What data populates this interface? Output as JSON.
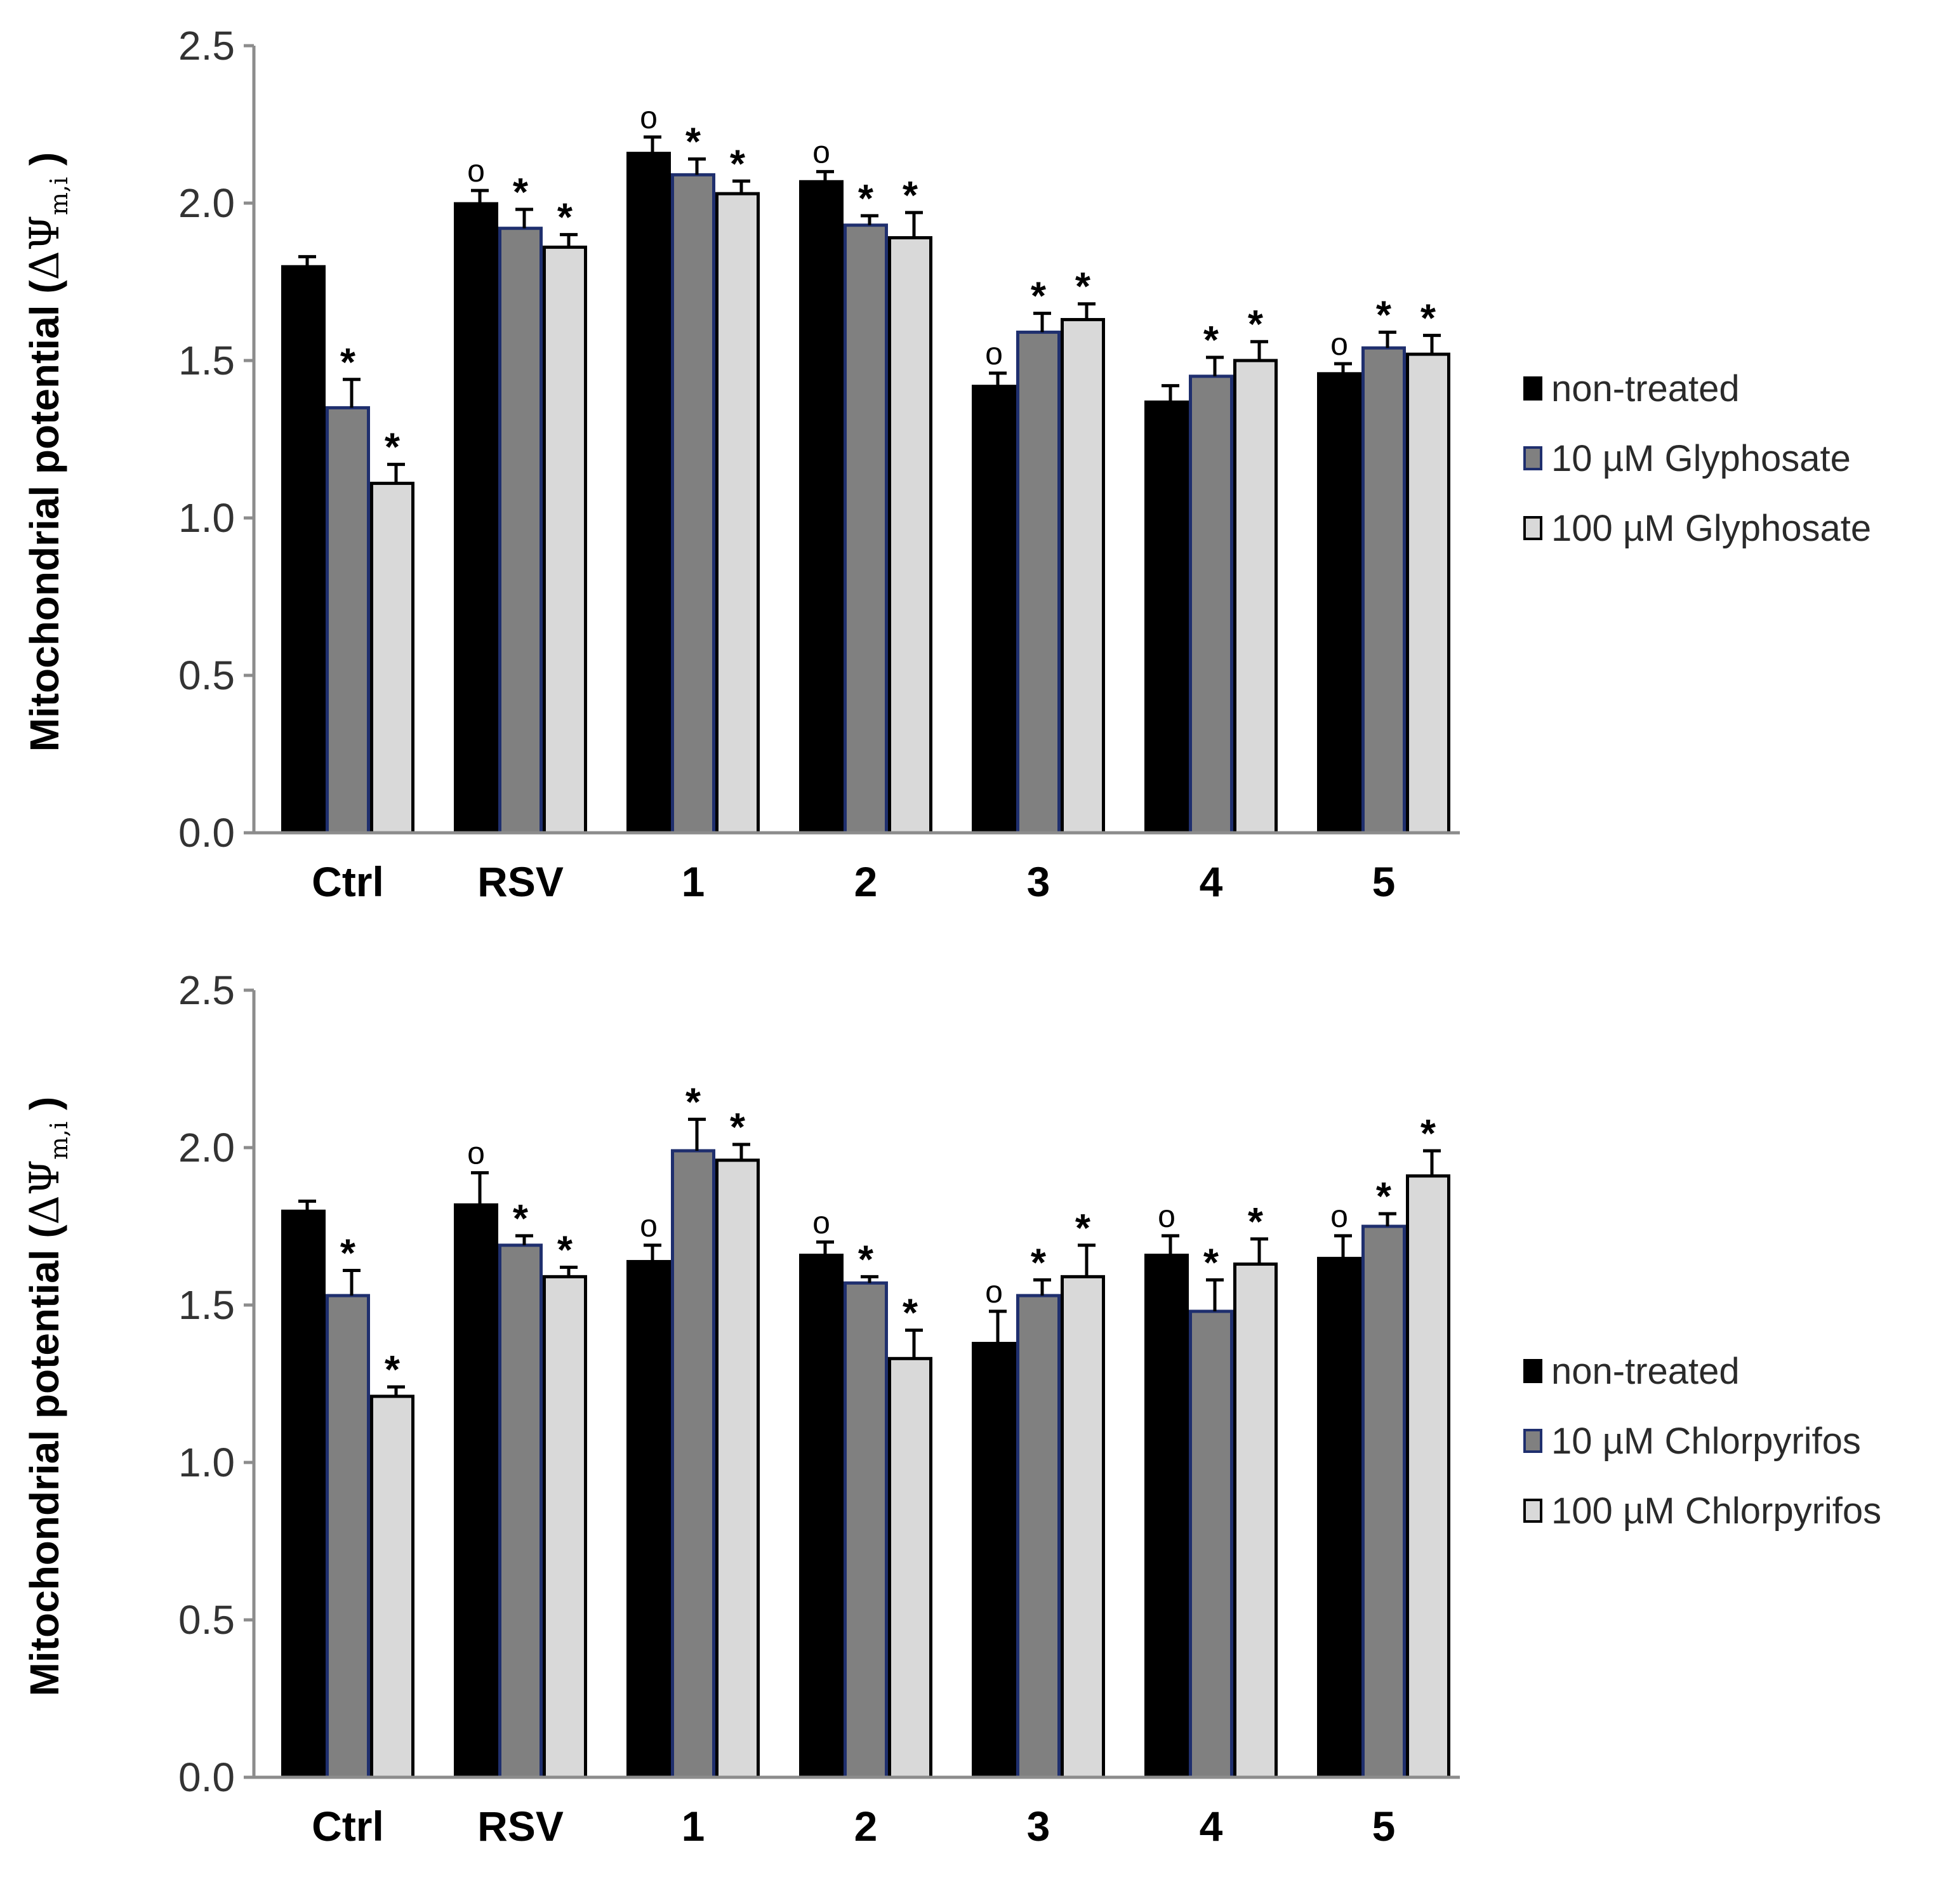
{
  "chart_data": [
    {
      "type": "bar",
      "ylabel_main": "Mitochondrial potential (",
      "ylabel_symbol": "ΔΨ",
      "ylabel_subscript": "m,i",
      "ylabel_close": " )",
      "ylim": [
        0,
        2.5
      ],
      "yticks": [
        "0.0",
        "0.5",
        "1.0",
        "1.5",
        "2.0",
        "2.5"
      ],
      "ytick_values": [
        0,
        0.5,
        1.0,
        1.5,
        2.0,
        2.5
      ],
      "categories": [
        "Ctrl",
        "RSV",
        "1",
        "2",
        "3",
        "4",
        "5"
      ],
      "series": [
        {
          "name": "non-treated",
          "fill": "#000000",
          "stroke": "#000000",
          "values": [
            1.8,
            2.0,
            2.16,
            2.07,
            1.42,
            1.37,
            1.46
          ],
          "errors": [
            0.03,
            0.04,
            0.05,
            0.03,
            0.04,
            0.05,
            0.03
          ],
          "marks": [
            "",
            "o",
            "o",
            "o",
            "o",
            "",
            "o"
          ]
        },
        {
          "name": "10 µM Glyphosate",
          "fill": "#808080",
          "stroke": "#1f2f6e",
          "values": [
            1.35,
            1.92,
            2.09,
            1.93,
            1.59,
            1.45,
            1.54
          ],
          "errors": [
            0.09,
            0.06,
            0.05,
            0.03,
            0.06,
            0.06,
            0.05
          ],
          "marks": [
            "*",
            "*",
            "*",
            "*",
            "*",
            "*",
            "*"
          ]
        },
        {
          "name": "100 µM Glyphosate",
          "fill": "#d9d9d9",
          "stroke": "#000000",
          "values": [
            1.11,
            1.86,
            2.03,
            1.89,
            1.63,
            1.5,
            1.52
          ],
          "errors": [
            0.06,
            0.04,
            0.04,
            0.08,
            0.05,
            0.06,
            0.06
          ],
          "marks": [
            "*",
            "*",
            "*",
            "*",
            "*",
            "*",
            "*"
          ]
        }
      ],
      "legend": [
        "non-treated",
        "10 µM Glyphosate",
        "100 µM Glyphosate"
      ]
    },
    {
      "type": "bar",
      "ylabel_main": "Mitochondrial potential (",
      "ylabel_symbol": "ΔΨ",
      "ylabel_subscript": "m,i",
      "ylabel_close": " )",
      "ylim": [
        0,
        2.5
      ],
      "yticks": [
        "0.0",
        "0.5",
        "1.0",
        "1.5",
        "2.0",
        "2.5"
      ],
      "ytick_values": [
        0,
        0.5,
        1.0,
        1.5,
        2.0,
        2.5
      ],
      "categories": [
        "Ctrl",
        "RSV",
        "1",
        "2",
        "3",
        "4",
        "5"
      ],
      "series": [
        {
          "name": "non-treated",
          "fill": "#000000",
          "stroke": "#000000",
          "values": [
            1.8,
            1.82,
            1.64,
            1.66,
            1.38,
            1.66,
            1.65
          ],
          "errors": [
            0.03,
            0.1,
            0.05,
            0.04,
            0.1,
            0.06,
            0.07
          ],
          "marks": [
            "",
            "o",
            "o",
            "o",
            "o",
            "o",
            "o"
          ]
        },
        {
          "name": "10 µM Chlorpyrifos",
          "fill": "#808080",
          "stroke": "#1f2f6e",
          "values": [
            1.53,
            1.69,
            1.99,
            1.57,
            1.53,
            1.48,
            1.75
          ],
          "errors": [
            0.08,
            0.03,
            0.1,
            0.02,
            0.05,
            0.1,
            0.04
          ],
          "marks": [
            "*",
            "*",
            "*",
            "*",
            "*",
            "*",
            "*"
          ]
        },
        {
          "name": "100 µM Chlorpyrifos",
          "fill": "#d9d9d9",
          "stroke": "#000000",
          "values": [
            1.21,
            1.59,
            1.96,
            1.33,
            1.59,
            1.63,
            1.91
          ],
          "errors": [
            0.03,
            0.03,
            0.05,
            0.09,
            0.1,
            0.08,
            0.08
          ],
          "marks": [
            "*",
            "*",
            "*",
            "*",
            "*",
            "*",
            "*"
          ]
        }
      ],
      "legend": [
        "non-treated",
        "10 µM Chlorpyrifos",
        "100 µM Chlorpyrifos"
      ]
    }
  ]
}
